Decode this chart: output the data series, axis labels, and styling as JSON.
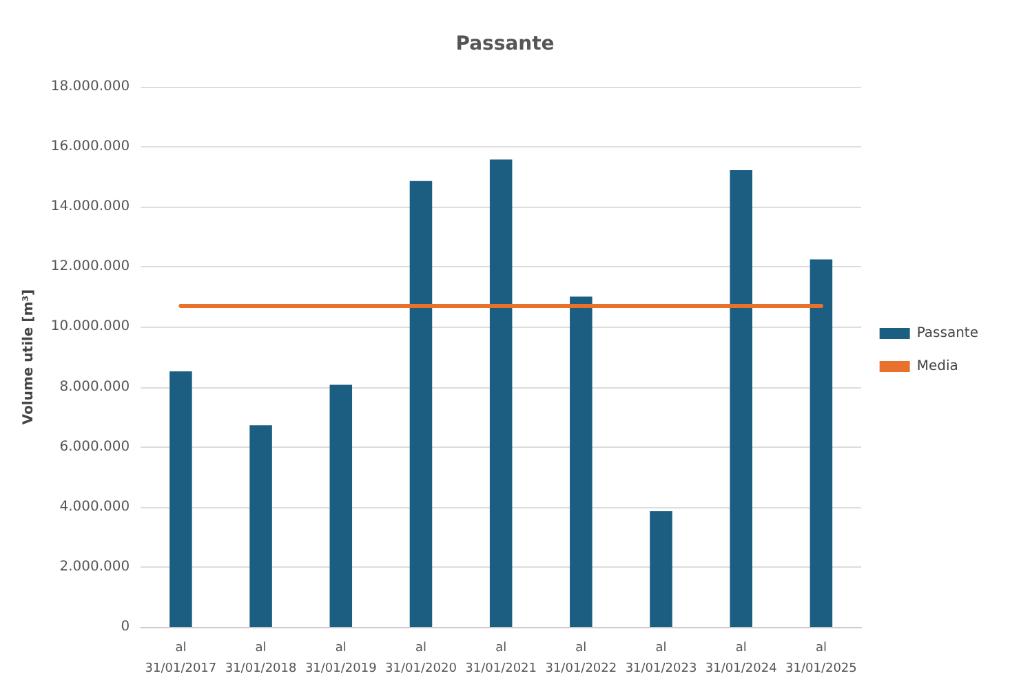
{
  "chart_data": {
    "type": "bar",
    "title": "Passante",
    "ylabel": "Volume utile [m³]",
    "categories": [
      "al\n31/01/2017",
      "al\n31/01/2018",
      "al\n31/01/2019",
      "al\n31/01/2020",
      "al\n31/01/2021",
      "al\n31/01/2022",
      "al\n31/01/2023",
      "al\n31/01/2024",
      "al\n31/01/2025"
    ],
    "series": [
      {
        "name": "Passante",
        "color": "#1b5e82",
        "values": [
          8520000,
          6720000,
          8070000,
          14860000,
          15580000,
          11010000,
          3860000,
          15220000,
          12250000
        ]
      },
      {
        "name": "Media",
        "type": "line",
        "color": "#e8722c",
        "values": [
          10700000,
          10700000,
          10700000,
          10700000,
          10700000,
          10700000,
          10700000,
          10700000,
          10700000
        ]
      }
    ],
    "ylim": [
      0,
      18000000
    ],
    "yticks": [
      0,
      {
        "value": 2000000,
        "label": "2.000.000"
      },
      {
        "value": 4000000,
        "label": "4.000.000"
      },
      {
        "value": 6000000,
        "label": "6.000.000"
      },
      {
        "value": 8000000,
        "label": "8.000.000"
      },
      {
        "value": 10000000,
        "label": "10.000.000"
      },
      {
        "value": 12000000,
        "label": "12.000.000"
      },
      {
        "value": 14000000,
        "label": "14.000.000"
      },
      {
        "value": 16000000,
        "label": "16.000.000"
      },
      {
        "value": 18000000,
        "label": "18.000.000"
      }
    ],
    "grid": "y",
    "legend": "right",
    "marker": "none",
    "line_style": "solid"
  }
}
